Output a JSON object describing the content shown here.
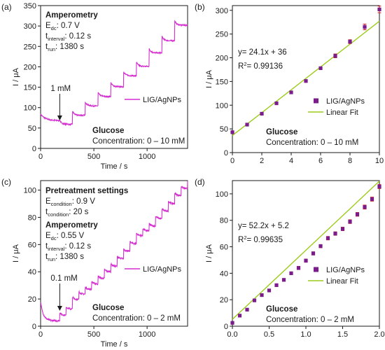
{
  "colors": {
    "trace": "#d42fcf",
    "marker": "#7a1c8c",
    "errorbar": "#c81e1e",
    "fit": "#9ccc1a",
    "axis": "#1a1a1a"
  },
  "chart_data": [
    {
      "panel": "(a)",
      "type": "line",
      "xlabel": "Time / s",
      "ylabel": "I / μA",
      "xlim": [
        0,
        1380
      ],
      "ylim": [
        0,
        350
      ],
      "xticks": [
        0,
        500,
        1000
      ],
      "yticks": [
        0,
        50,
        100,
        150,
        200,
        250,
        300,
        350
      ],
      "legend": [
        "LIG/AgNPs"
      ],
      "legend_position": "middle-right",
      "annotations": {
        "method": "Amperometry",
        "edc": "E",
        "edc_sub": "dc",
        "edc_val": ": 0.7 V",
        "tint": "t",
        "tint_sub": "interval",
        "tint_val": ": 0.12 s",
        "trun": "t",
        "trun_sub": "run",
        "trun_val": ": 1380 s",
        "arrow_label": "1 mM",
        "analyte": "Glucose",
        "conc": "Concentration: 0 – 10 mM"
      },
      "series": [
        {
          "name": "LIG/AgNPs",
          "baseline": 68,
          "decay": 16,
          "tau": 45,
          "step_start": 180,
          "step_interval": 120,
          "steps": [
            59,
            81,
            104,
            127,
            151,
            178,
            201,
            234,
            264,
            302
          ],
          "overshoot": 10,
          "noise": 1.5
        }
      ]
    },
    {
      "panel": "(b)",
      "type": "scatter",
      "xlabel": "",
      "ylabel": "I / μA",
      "xlim": [
        0,
        10
      ],
      "ylim": [
        0,
        310
      ],
      "xticks": [
        0,
        2,
        4,
        6,
        8,
        10
      ],
      "yticks": [
        0,
        50,
        100,
        150,
        200,
        250,
        300
      ],
      "legend": [
        "LIG/AgNPs",
        "Linear Fit"
      ],
      "legend_position": "middle-right",
      "equation": "y= 24.1x + 36",
      "r2_label": "R",
      "r2_val": "= 0.99136",
      "analyte": "Glucose",
      "conc": "Concentration: 0 – 10 mM",
      "fit": {
        "slope": 24.1,
        "intercept": 36
      },
      "x": [
        0,
        1,
        2,
        3,
        4,
        5,
        6,
        7,
        8,
        9,
        10
      ],
      "y": [
        43,
        59,
        82,
        104,
        127,
        151,
        178,
        204,
        234,
        265,
        302
      ],
      "err": [
        1,
        1,
        1,
        2,
        2,
        2,
        2,
        4,
        4,
        6,
        7
      ]
    },
    {
      "panel": "(c)",
      "type": "line",
      "xlabel": "Time / s",
      "ylabel": "I / μA",
      "xlim": [
        0,
        1380
      ],
      "ylim": [
        0,
        107
      ],
      "xticks": [
        0,
        500,
        1000
      ],
      "yticks": [
        0,
        20,
        40,
        60,
        80,
        100
      ],
      "legend": [
        "LIG/AgNPs"
      ],
      "legend_position": "middle-right",
      "annotations": {
        "pre_title": "Pretreatment settings",
        "econd": "E",
        "econd_sub": "condition",
        "econd_val": ": 0.9 V",
        "tcond": "t",
        "tcond_sub": "condition",
        "tcond_val": ": 20 s",
        "method": "Amperometry",
        "edc": "E",
        "edc_sub": "dc",
        "edc_val": ": 0.55 V",
        "tint": "t",
        "tint_sub": "interval",
        "tint_val": ": 0.12 s",
        "trun": "t",
        "trun_sub": "run",
        "trun_val": ": 1380 s",
        "arrow_label": "0.1 mM",
        "analyte": "Glucose",
        "conc": "Concentration: 0 – 2 mM"
      },
      "series": [
        {
          "name": "LIG/AgNPs",
          "baseline": 4,
          "decay": 14,
          "tau": 25,
          "step_start": 180,
          "step_interval": 60,
          "steps": [
            8,
            12.5,
            19.5,
            23.5,
            27,
            31,
            35,
            40,
            44,
            49.5,
            55,
            60.5,
            66.5,
            70,
            73.5,
            79,
            84.5,
            90,
            96,
            101,
            105
          ],
          "overshoot": 1.8,
          "noise": 0.6
        }
      ]
    },
    {
      "panel": "(d)",
      "type": "scatter",
      "xlabel": "",
      "ylabel": "I / μA",
      "xlim": [
        0,
        2
      ],
      "ylim": [
        0,
        110
      ],
      "xticks": [
        0.0,
        0.5,
        1.0,
        1.5,
        2.0
      ],
      "yticks": [
        0,
        20,
        40,
        60,
        80,
        100
      ],
      "legend": [
        "LIG/AgNPs",
        "Linear Fit"
      ],
      "legend_position": "middle-right",
      "equation": "y= 52.2x + 5.2",
      "r2_label": "R",
      "r2_val": "= 0.99635",
      "analyte": "Glucose",
      "conc": "Concentration: 0 – 2 mM",
      "fit": {
        "slope": 52.2,
        "intercept": 5.2
      },
      "x": [
        0,
        0.1,
        0.2,
        0.3,
        0.4,
        0.5,
        0.6,
        0.7,
        0.8,
        0.9,
        1.0,
        1.1,
        1.2,
        1.3,
        1.4,
        1.5,
        1.6,
        1.7,
        1.8,
        1.9,
        2.0
      ],
      "y": [
        2.5,
        8,
        12.5,
        19.5,
        23.5,
        27,
        31,
        35,
        40,
        44,
        49.5,
        55,
        60.5,
        66.5,
        70,
        73.5,
        79,
        84.5,
        90,
        96,
        105.5
      ],
      "err": [
        0.5,
        0.8,
        0.8,
        1,
        1,
        1,
        1,
        1,
        1,
        1.2,
        1.2,
        1.2,
        1.2,
        1.3,
        1.3,
        1.3,
        1.4,
        1.4,
        1.5,
        1.5,
        1.5
      ]
    }
  ]
}
